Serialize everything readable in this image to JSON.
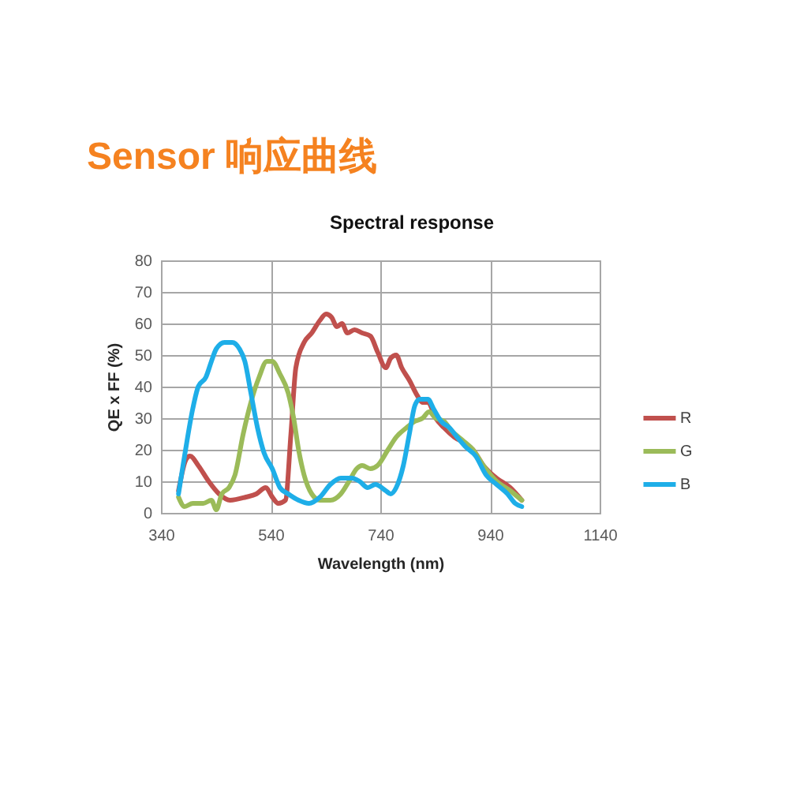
{
  "chart_data": {
    "type": "line",
    "title": "Sensor 响应曲线",
    "subtitle": "Spectral response",
    "xlabel": "Wavelength (nm)",
    "ylabel": "QE x FF (%)",
    "xlim": [
      340,
      1140
    ],
    "xticks": [
      340,
      540,
      740,
      940,
      1140
    ],
    "ylim": [
      0,
      80
    ],
    "yticks": [
      0,
      10,
      20,
      30,
      40,
      50,
      60,
      70,
      80
    ],
    "grid": true,
    "legend": "right",
    "series": [
      {
        "name": "R",
        "color": "#c0504d",
        "x": [
          372,
          386,
          393,
          408,
          427,
          446,
          466,
          495,
          514,
          531,
          543,
          554,
          567,
          577,
          586,
          601,
          615,
          630,
          641,
          651,
          661,
          670,
          680,
          693,
          707,
          722,
          735,
          750,
          759,
          769,
          779,
          793,
          808,
          817,
          827,
          841,
          856,
          875,
          895,
          909,
          928,
          952,
          977,
          998
        ],
        "values": [
          7,
          17,
          18,
          15,
          10,
          6,
          4,
          5,
          6,
          8,
          5,
          3,
          4,
          25,
          46,
          54,
          57,
          61,
          63,
          62,
          59,
          60,
          57,
          58,
          57,
          56,
          51,
          46,
          49,
          50,
          46,
          42,
          37,
          35,
          35,
          30,
          27,
          24,
          22,
          20,
          15,
          11,
          8,
          4
        ]
      },
      {
        "name": "G",
        "color": "#9bbb59",
        "x": [
          372,
          383,
          398,
          417,
          432,
          441,
          451,
          464,
          475,
          490,
          504,
          519,
          533,
          543,
          557,
          572,
          582,
          591,
          601,
          615,
          630,
          649,
          668,
          683,
          697,
          707,
          722,
          735,
          754,
          769,
          788,
          803,
          817,
          829,
          841,
          856,
          870,
          890,
          909,
          928,
          952,
          977,
          998
        ],
        "values": [
          5,
          2,
          3,
          3,
          4,
          1,
          6,
          8,
          12,
          25,
          35,
          43,
          48,
          48,
          44,
          38,
          30,
          20,
          12,
          6,
          4,
          4,
          6,
          10,
          14,
          15,
          14,
          15,
          20,
          24,
          27,
          29,
          30,
          32,
          30,
          29,
          26,
          23,
          20,
          15,
          10,
          7,
          4
        ]
      },
      {
        "name": "B",
        "color": "#1eaee8",
        "x": [
          372,
          383,
          398,
          408,
          422,
          432,
          441,
          456,
          470,
          483,
          493,
          504,
          516,
          528,
          543,
          557,
          572,
          591,
          610,
          630,
          649,
          668,
          688,
          702,
          717,
          731,
          750,
          759,
          769,
          782,
          793,
          803,
          812,
          827,
          837,
          851,
          866,
          880,
          895,
          914,
          933,
          952,
          972,
          986,
          998
        ],
        "values": [
          6,
          18,
          33,
          40,
          43,
          48,
          52,
          54,
          54,
          52,
          48,
          38,
          27,
          19,
          14,
          8,
          6,
          4,
          3,
          5,
          9,
          11,
          11,
          10,
          8,
          9,
          7,
          6,
          8,
          15,
          25,
          34,
          36,
          36,
          33,
          29,
          27,
          24,
          21,
          18,
          12,
          9,
          6,
          3,
          2
        ]
      }
    ]
  }
}
